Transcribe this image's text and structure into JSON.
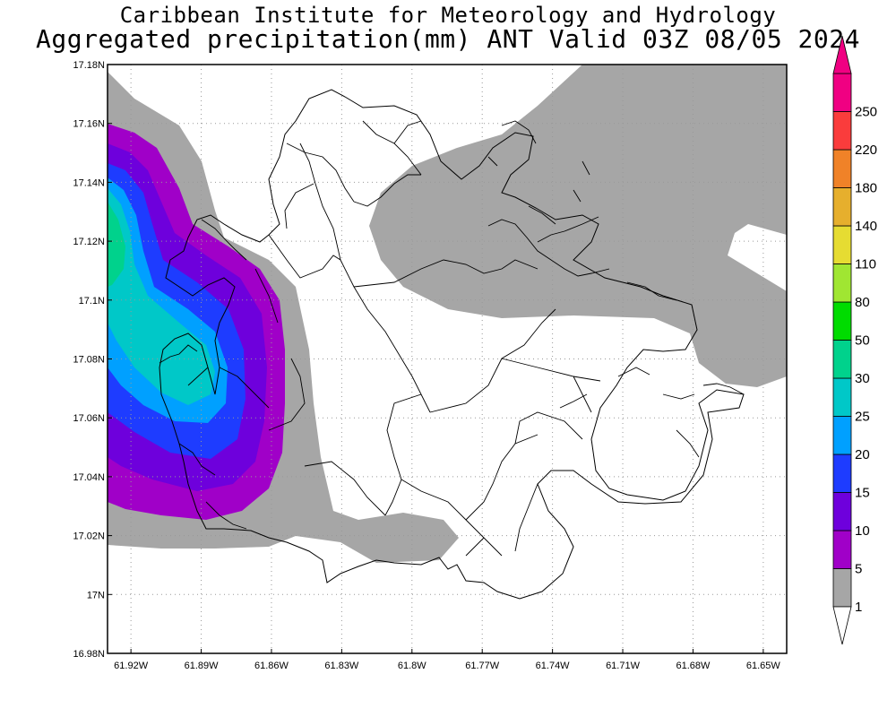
{
  "title_line1": "Caribbean Institute for Meteorology and Hydrology",
  "title_line2": "Aggregated precipitation(mm) ANT Valid 03Z 08/05 2024",
  "map": {
    "lon_range": [
      -61.93,
      -61.64
    ],
    "lat_range": [
      16.98,
      17.18
    ],
    "lon_ticks": [
      {
        "value": -61.92,
        "label": "61.92W"
      },
      {
        "value": -61.89,
        "label": "61.89W"
      },
      {
        "value": -61.86,
        "label": "61.86W"
      },
      {
        "value": -61.83,
        "label": "61.83W"
      },
      {
        "value": -61.8,
        "label": "61.8W"
      },
      {
        "value": -61.77,
        "label": "61.77W"
      },
      {
        "value": -61.74,
        "label": "61.74W"
      },
      {
        "value": -61.71,
        "label": "61.71W"
      },
      {
        "value": -61.68,
        "label": "61.68W"
      },
      {
        "value": -61.65,
        "label": "61.65W"
      }
    ],
    "lat_ticks": [
      {
        "value": 16.98,
        "label": "16.98N"
      },
      {
        "value": 17.0,
        "label": "17N"
      },
      {
        "value": 17.02,
        "label": "17.02N"
      },
      {
        "value": 17.04,
        "label": "17.04N"
      },
      {
        "value": 17.06,
        "label": "17.06N"
      },
      {
        "value": 17.08,
        "label": "17.08N"
      },
      {
        "value": 17.1,
        "label": "17.1N"
      },
      {
        "value": 17.12,
        "label": "17.12N"
      },
      {
        "value": 17.14,
        "label": "17.14N"
      },
      {
        "value": 17.16,
        "label": "17.16N"
      },
      {
        "value": 17.18,
        "label": "17.18N"
      }
    ],
    "grid": "dotted",
    "coastline_color": "#000000"
  },
  "colorbar": {
    "levels": [
      {
        "label": "1",
        "color": "#a6a6a6"
      },
      {
        "label": "5",
        "color": "#a000c8"
      },
      {
        "label": "10",
        "color": "#6e00dc"
      },
      {
        "label": "15",
        "color": "#1e3cff"
      },
      {
        "label": "20",
        "color": "#00a0ff"
      },
      {
        "label": "25",
        "color": "#00c8c8"
      },
      {
        "label": "30",
        "color": "#00d28c"
      },
      {
        "label": "50",
        "color": "#00dc00"
      },
      {
        "label": "80",
        "color": "#a0e632"
      },
      {
        "label": "110",
        "color": "#e6dc32"
      },
      {
        "label": "140",
        "color": "#e6af2d"
      },
      {
        "label": "180",
        "color": "#f08228"
      },
      {
        "label": "220",
        "color": "#fa3c3c"
      },
      {
        "label": "250",
        "color": "#f00082"
      }
    ]
  }
}
